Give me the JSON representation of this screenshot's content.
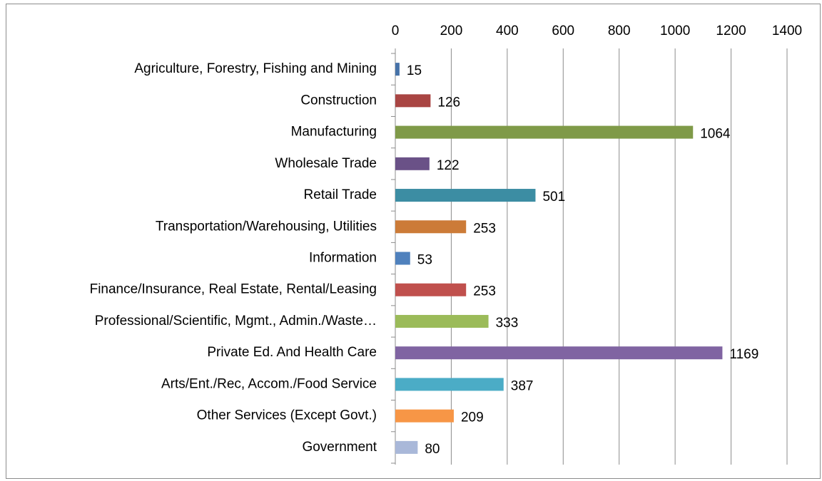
{
  "chart_data": {
    "type": "bar",
    "orientation": "horizontal",
    "categories": [
      "Agriculture, Forestry, Fishing and Mining",
      "Construction",
      "Manufacturing",
      "Wholesale Trade",
      "Retail Trade",
      "Transportation/Warehousing, Utilities",
      "Information",
      "Finance/Insurance, Real Estate, Rental/Leasing",
      "Professional/Scientific, Mgmt., Admin./Waste…",
      "Private Ed. And Health Care",
      "Arts/Ent./Rec, Accom./Food Service",
      "Other Services (Except Govt.)",
      "Government"
    ],
    "values": [
      15,
      126,
      1064,
      122,
      501,
      253,
      53,
      253,
      333,
      1169,
      387,
      209,
      80
    ],
    "colors": [
      "#4672a8",
      "#a94543",
      "#7f9a48",
      "#6a5187",
      "#3c8da3",
      "#cc7b38",
      "#4f81bd",
      "#c0504d",
      "#9bbb59",
      "#8064a2",
      "#4bacc6",
      "#f79646",
      "#a9b8d9"
    ],
    "xlim": [
      0,
      1400
    ],
    "xticks": [
      0,
      200,
      400,
      600,
      800,
      1000,
      1200,
      1400
    ],
    "grid": true,
    "data_labels": true
  }
}
